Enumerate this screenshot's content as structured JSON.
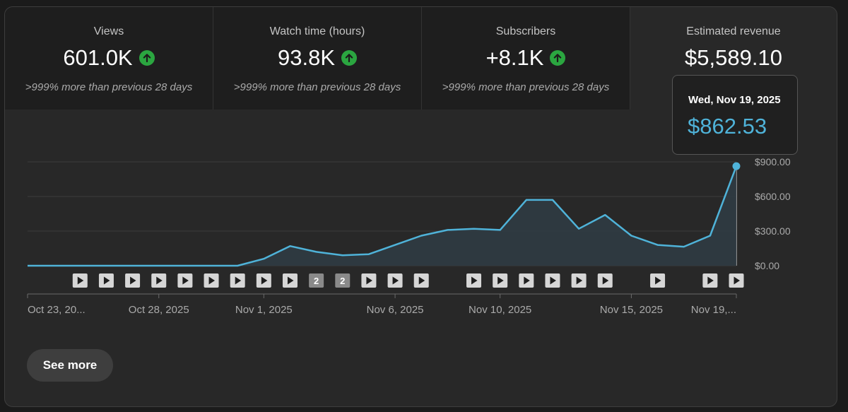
{
  "metrics": [
    {
      "label": "Views",
      "value": "601.0K",
      "compare": ">999% more than previous 28 days",
      "trend": "up"
    },
    {
      "label": "Watch time (hours)",
      "value": "93.8K",
      "compare": ">999% more than previous 28 days",
      "trend": "up"
    },
    {
      "label": "Subscribers",
      "value": "+8.1K",
      "compare": ">999% more than previous 28 days",
      "trend": "up"
    },
    {
      "label": "Estimated revenue",
      "value": "$5,589.10",
      "compare": "",
      "trend": "none"
    }
  ],
  "tooltip": {
    "date": "Wed, Nov 19, 2025",
    "value": "$862.53"
  },
  "see_more_label": "See more",
  "colors": {
    "line": "#4fb3d9",
    "up": "#2ba640",
    "area": "#2f3b42"
  },
  "chart_data": {
    "type": "area",
    "x": [
      "Oct 23, 2025",
      "Oct 24, 2025",
      "Oct 25, 2025",
      "Oct 26, 2025",
      "Oct 27, 2025",
      "Oct 28, 2025",
      "Oct 29, 2025",
      "Oct 30, 2025",
      "Oct 31, 2025",
      "Nov 1, 2025",
      "Nov 2, 2025",
      "Nov 3, 2025",
      "Nov 4, 2025",
      "Nov 5, 2025",
      "Nov 6, 2025",
      "Nov 7, 2025",
      "Nov 8, 2025",
      "Nov 9, 2025",
      "Nov 10, 2025",
      "Nov 11, 2025",
      "Nov 12, 2025",
      "Nov 13, 2025",
      "Nov 14, 2025",
      "Nov 15, 2025",
      "Nov 16, 2025",
      "Nov 17, 2025",
      "Nov 18, 2025",
      "Nov 19, 2025"
    ],
    "series": [
      {
        "values": [
          0,
          0,
          0,
          0,
          0,
          0,
          0,
          0,
          0,
          60,
          170,
          120,
          90,
          100,
          180,
          260,
          310,
          320,
          310,
          570,
          570,
          320,
          440,
          260,
          180,
          165,
          260,
          862.53
        ]
      }
    ],
    "ylim": [
      0,
      900
    ],
    "y_ticks": [
      "$0.00",
      "$300.00",
      "$600.00",
      "$900.00"
    ],
    "y_tick_values": [
      0,
      300,
      600,
      900
    ],
    "x_tick_labels": [
      {
        "index": 0,
        "label": "Oct 23, 20..."
      },
      {
        "index": 5,
        "label": "Oct 28, 2025"
      },
      {
        "index": 9,
        "label": "Nov 1, 2025"
      },
      {
        "index": 14,
        "label": "Nov 6, 2025"
      },
      {
        "index": 18,
        "label": "Nov 10, 2025"
      },
      {
        "index": 23,
        "label": "Nov 15, 2025"
      },
      {
        "index": 27,
        "label": "Nov 19,..."
      }
    ],
    "video_markers": [
      {
        "index": 2,
        "label": ""
      },
      {
        "index": 3,
        "label": ""
      },
      {
        "index": 4,
        "label": ""
      },
      {
        "index": 5,
        "label": ""
      },
      {
        "index": 6,
        "label": ""
      },
      {
        "index": 7,
        "label": ""
      },
      {
        "index": 8,
        "label": ""
      },
      {
        "index": 9,
        "label": ""
      },
      {
        "index": 10,
        "label": ""
      },
      {
        "index": 11,
        "label": "2"
      },
      {
        "index": 12,
        "label": "2"
      },
      {
        "index": 13,
        "label": ""
      },
      {
        "index": 14,
        "label": ""
      },
      {
        "index": 15,
        "label": ""
      },
      {
        "index": 17,
        "label": ""
      },
      {
        "index": 18,
        "label": ""
      },
      {
        "index": 19,
        "label": ""
      },
      {
        "index": 20,
        "label": ""
      },
      {
        "index": 21,
        "label": ""
      },
      {
        "index": 22,
        "label": ""
      },
      {
        "index": 24,
        "label": ""
      },
      {
        "index": 26,
        "label": ""
      },
      {
        "index": 27,
        "label": ""
      }
    ],
    "highlight_index": 27,
    "grid": true
  }
}
